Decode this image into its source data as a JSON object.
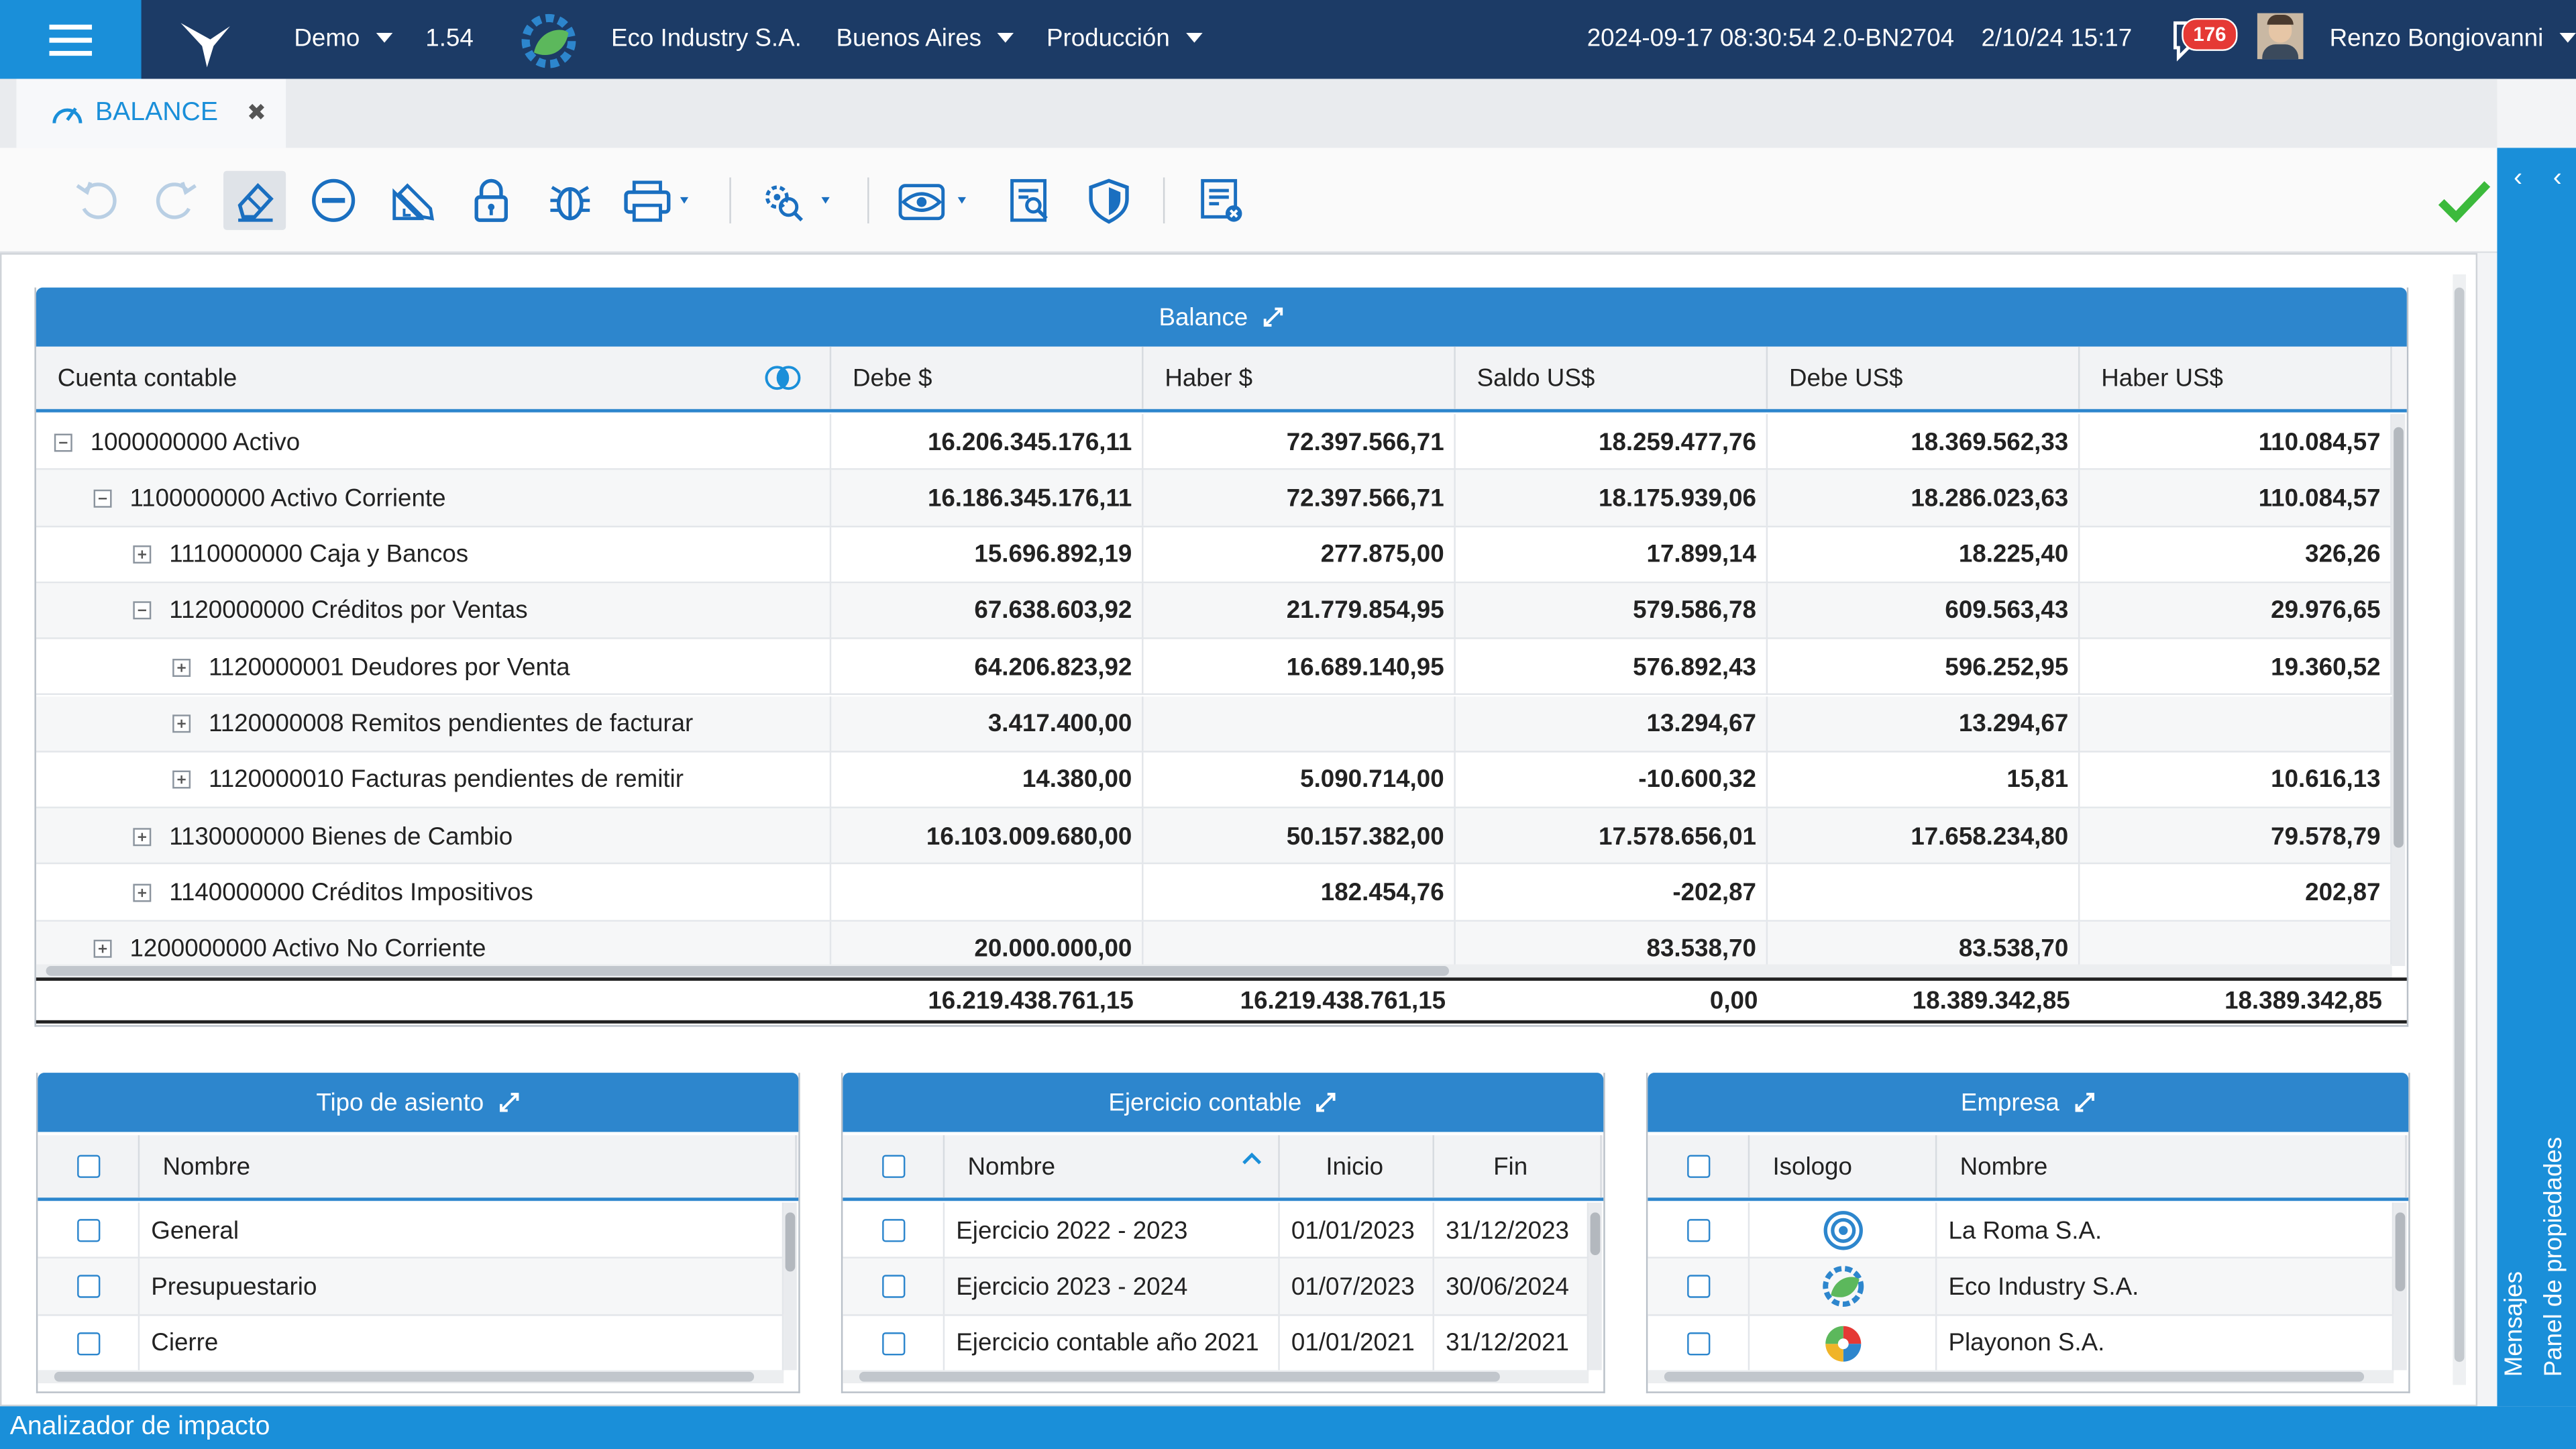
{
  "header": {
    "env": "Demo",
    "version": "1.54",
    "company": "Eco Industry S.A.",
    "city": "Buenos Aires",
    "mode": "Producción",
    "build": "2024-09-17 08:30:54 2.0-BN2704",
    "datetime": "2/10/24 15:17",
    "notifications": "176",
    "user": "Renzo Bongiovanni"
  },
  "tab": {
    "label": "BALANCE"
  },
  "colors": {
    "brand": "#1c3b66",
    "accent": "#1a8fd9",
    "panel_header": "#2d86cd",
    "ok": "#3cba3c",
    "badge": "#e53935"
  },
  "toolbar": {
    "icons": [
      "undo-icon",
      "redo-icon",
      "eraser-icon",
      "remove-circle-icon",
      "ruler-pencil-icon",
      "lock-icon",
      "bug-icon",
      "print-icon",
      "settings-search-icon",
      "eye-icon",
      "document-search-icon",
      "shield-icon",
      "list-clear-icon",
      "check-icon"
    ]
  },
  "balance": {
    "title": "Balance",
    "columns": [
      "Cuenta contable",
      "Debe $",
      "Haber $",
      "Saldo US$",
      "Debe US$",
      "Haber US$"
    ],
    "rows": [
      {
        "level": 0,
        "toggle": "minus",
        "account": "1000000000 Activo",
        "debe": "16.206.345.176,11",
        "haber": "72.397.566,71",
        "saldo_us": "18.259.477,76",
        "debe_us": "18.369.562,33",
        "haber_us": "110.084,57"
      },
      {
        "level": 1,
        "toggle": "minus",
        "account": "1100000000 Activo Corriente",
        "debe": "16.186.345.176,11",
        "haber": "72.397.566,71",
        "saldo_us": "18.175.939,06",
        "debe_us": "18.286.023,63",
        "haber_us": "110.084,57"
      },
      {
        "level": 2,
        "toggle": "plus",
        "account": "1110000000 Caja y Bancos",
        "debe": "15.696.892,19",
        "haber": "277.875,00",
        "saldo_us": "17.899,14",
        "debe_us": "18.225,40",
        "haber_us": "326,26"
      },
      {
        "level": 2,
        "toggle": "minus",
        "account": "1120000000 Créditos por Ventas",
        "debe": "67.638.603,92",
        "haber": "21.779.854,95",
        "saldo_us": "579.586,78",
        "debe_us": "609.563,43",
        "haber_us": "29.976,65"
      },
      {
        "level": 3,
        "toggle": "plus",
        "account": "1120000001 Deudores por Venta",
        "debe": "64.206.823,92",
        "haber": "16.689.140,95",
        "saldo_us": "576.892,43",
        "debe_us": "596.252,95",
        "haber_us": "19.360,52"
      },
      {
        "level": 3,
        "toggle": "plus",
        "account": "1120000008 Remitos pendientes de facturar",
        "debe": "3.417.400,00",
        "haber": "",
        "saldo_us": "13.294,67",
        "debe_us": "13.294,67",
        "haber_us": ""
      },
      {
        "level": 3,
        "toggle": "plus",
        "account": "1120000010 Facturas pendientes de remitir",
        "debe": "14.380,00",
        "haber": "5.090.714,00",
        "saldo_us": "-10.600,32",
        "debe_us": "15,81",
        "haber_us": "10.616,13"
      },
      {
        "level": 2,
        "toggle": "plus",
        "account": "1130000000 Bienes de Cambio",
        "debe": "16.103.009.680,00",
        "haber": "50.157.382,00",
        "saldo_us": "17.578.656,01",
        "debe_us": "17.658.234,80",
        "haber_us": "79.578,79"
      },
      {
        "level": 2,
        "toggle": "plus",
        "account": "1140000000 Créditos Impositivos",
        "debe": "",
        "haber": "182.454,76",
        "saldo_us": "-202,87",
        "debe_us": "",
        "haber_us": "202,87"
      },
      {
        "level": 1,
        "toggle": "plus",
        "account": "1200000000 Activo No Corriente",
        "debe": "20.000.000,00",
        "haber": "",
        "saldo_us": "83.538,70",
        "debe_us": "83.538,70",
        "haber_us": ""
      }
    ],
    "totals": {
      "debe": "16.219.438.761,15",
      "haber": "16.219.438.761,15",
      "saldo_us": "0,00",
      "debe_us": "18.389.342,85",
      "haber_us": "18.389.342,85"
    }
  },
  "tipo": {
    "title": "Tipo de asiento",
    "col": "Nombre",
    "rows": [
      "General",
      "Presupuestario",
      "Cierre"
    ]
  },
  "ejercicio": {
    "title": "Ejercicio contable",
    "cols": [
      "Nombre",
      "Inicio",
      "Fin"
    ],
    "rows": [
      [
        "Ejercicio 2022 - 2023",
        "01/01/2023",
        "31/12/2023"
      ],
      [
        "Ejercicio 2023 - 2024",
        "01/07/2023",
        "30/06/2024"
      ],
      [
        "Ejercicio contable año 2021",
        "01/01/2021",
        "31/12/2021"
      ]
    ]
  },
  "empresa": {
    "title": "Empresa",
    "cols": [
      "Isologo",
      "Nombre"
    ],
    "rows": [
      {
        "logo": "target-logo-icon",
        "name": "La Roma S.A."
      },
      {
        "logo": "leaf-gear-logo-icon",
        "name": "Eco Industry S.A."
      },
      {
        "logo": "pinwheel-logo-icon",
        "name": "Playonon S.A."
      }
    ]
  },
  "side": {
    "messages": "Mensajes",
    "properties": "Panel de propiedades"
  },
  "status": {
    "label": "Analizador de impacto"
  }
}
